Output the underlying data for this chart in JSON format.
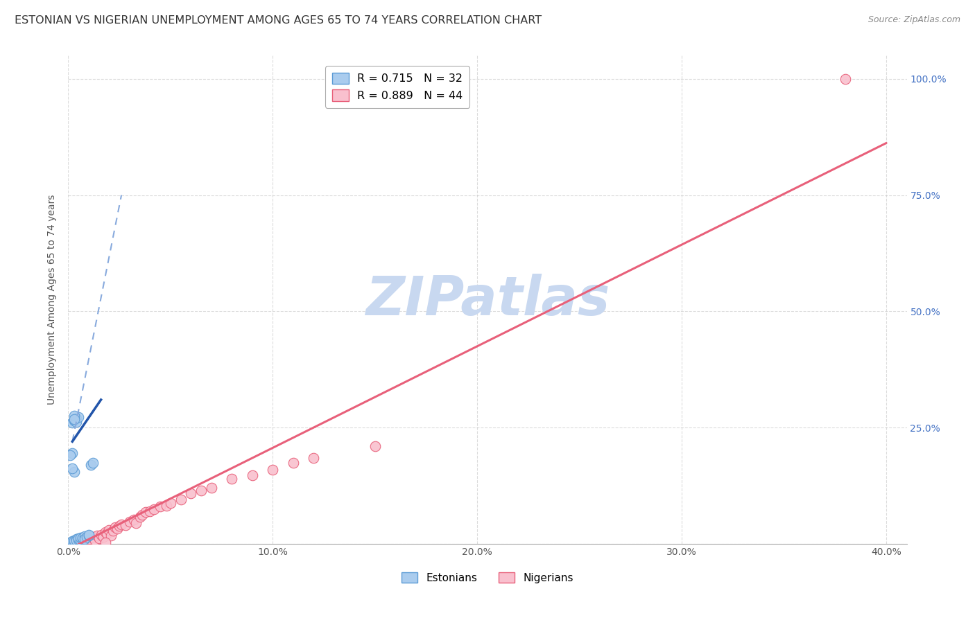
{
  "title": "ESTONIAN VS NIGERIAN UNEMPLOYMENT AMONG AGES 65 TO 74 YEARS CORRELATION CHART",
  "source": "Source: ZipAtlas.com",
  "ylabel": "Unemployment Among Ages 65 to 74 years",
  "xlim": [
    0.0,
    0.41
  ],
  "ylim": [
    0.0,
    1.05
  ],
  "xticks": [
    0.0,
    0.1,
    0.2,
    0.3,
    0.4
  ],
  "xticklabels": [
    "0.0%",
    "10.0%",
    "20.0%",
    "30.0%",
    "40.0%"
  ],
  "yticks_right": [
    0.0,
    0.25,
    0.5,
    0.75,
    1.0
  ],
  "yticklabels_right": [
    "",
    "25.0%",
    "50.0%",
    "75.0%",
    "100.0%"
  ],
  "watermark": "ZIPatlas",
  "estonian_color": "#5b9bd5",
  "estonian_dot_fill": "#aaccee",
  "estonian_line_color": "#2255aa",
  "estonian_dash_color": "#88aadd",
  "nigerian_color": "#e8607a",
  "nigerian_dot_fill": "#f9c0ce",
  "grid_color": "#cccccc",
  "background_color": "#ffffff",
  "right_ytick_color": "#4472c4",
  "watermark_color": "#c8d8f0",
  "watermark_fontsize": 56,
  "title_fontsize": 11.5,
  "tick_fontsize": 10,
  "ylabel_fontsize": 10,
  "dot_size": 110,
  "nigerian_line_x": [
    0.0,
    0.4
  ],
  "nigerian_line_y": [
    -0.012,
    0.862
  ],
  "estonian_solid_line_x": [
    0.002,
    0.016
  ],
  "estonian_solid_line_y": [
    0.22,
    0.31
  ],
  "estonian_dash_line_x": [
    0.002,
    0.026
  ],
  "estonian_dash_line_y": [
    0.22,
    0.75
  ],
  "estonian_scatter": [
    [
      0.001,
      0.003
    ],
    [
      0.002,
      0.004
    ],
    [
      0.002,
      0.006
    ],
    [
      0.003,
      0.005
    ],
    [
      0.003,
      0.008
    ],
    [
      0.004,
      0.01
    ],
    [
      0.004,
      0.007
    ],
    [
      0.005,
      0.009
    ],
    [
      0.005,
      0.012
    ],
    [
      0.006,
      0.008
    ],
    [
      0.006,
      0.014
    ],
    [
      0.007,
      0.011
    ],
    [
      0.007,
      0.013
    ],
    [
      0.008,
      0.016
    ],
    [
      0.008,
      0.01
    ],
    [
      0.009,
      0.015
    ],
    [
      0.01,
      0.018
    ],
    [
      0.01,
      0.02
    ],
    [
      0.011,
      0.17
    ],
    [
      0.012,
      0.175
    ],
    [
      0.002,
      0.26
    ],
    [
      0.003,
      0.265
    ],
    [
      0.003,
      0.268
    ],
    [
      0.004,
      0.27
    ],
    [
      0.004,
      0.262
    ],
    [
      0.005,
      0.272
    ],
    [
      0.003,
      0.275
    ],
    [
      0.003,
      0.268
    ],
    [
      0.002,
      0.195
    ],
    [
      0.001,
      0.19
    ],
    [
      0.003,
      0.155
    ],
    [
      0.002,
      0.162
    ]
  ],
  "nigerian_scatter": [
    [
      0.003,
      0.003
    ],
    [
      0.005,
      0.008
    ],
    [
      0.007,
      0.006
    ],
    [
      0.009,
      0.012
    ],
    [
      0.01,
      0.01
    ],
    [
      0.012,
      0.015
    ],
    [
      0.013,
      0.008
    ],
    [
      0.014,
      0.018
    ],
    [
      0.015,
      0.012
    ],
    [
      0.016,
      0.02
    ],
    [
      0.017,
      0.015
    ],
    [
      0.018,
      0.025
    ],
    [
      0.019,
      0.022
    ],
    [
      0.02,
      0.03
    ],
    [
      0.021,
      0.018
    ],
    [
      0.022,
      0.028
    ],
    [
      0.023,
      0.035
    ],
    [
      0.024,
      0.032
    ],
    [
      0.025,
      0.038
    ],
    [
      0.026,
      0.042
    ],
    [
      0.028,
      0.04
    ],
    [
      0.03,
      0.048
    ],
    [
      0.032,
      0.052
    ],
    [
      0.033,
      0.045
    ],
    [
      0.035,
      0.058
    ],
    [
      0.036,
      0.062
    ],
    [
      0.038,
      0.068
    ],
    [
      0.04,
      0.07
    ],
    [
      0.042,
      0.075
    ],
    [
      0.045,
      0.08
    ],
    [
      0.048,
      0.082
    ],
    [
      0.05,
      0.088
    ],
    [
      0.055,
      0.095
    ],
    [
      0.06,
      0.108
    ],
    [
      0.065,
      0.115
    ],
    [
      0.07,
      0.12
    ],
    [
      0.08,
      0.14
    ],
    [
      0.09,
      0.148
    ],
    [
      0.1,
      0.16
    ],
    [
      0.11,
      0.175
    ],
    [
      0.12,
      0.185
    ],
    [
      0.15,
      0.21
    ],
    [
      0.38,
      1.0
    ],
    [
      0.018,
      0.003
    ]
  ]
}
